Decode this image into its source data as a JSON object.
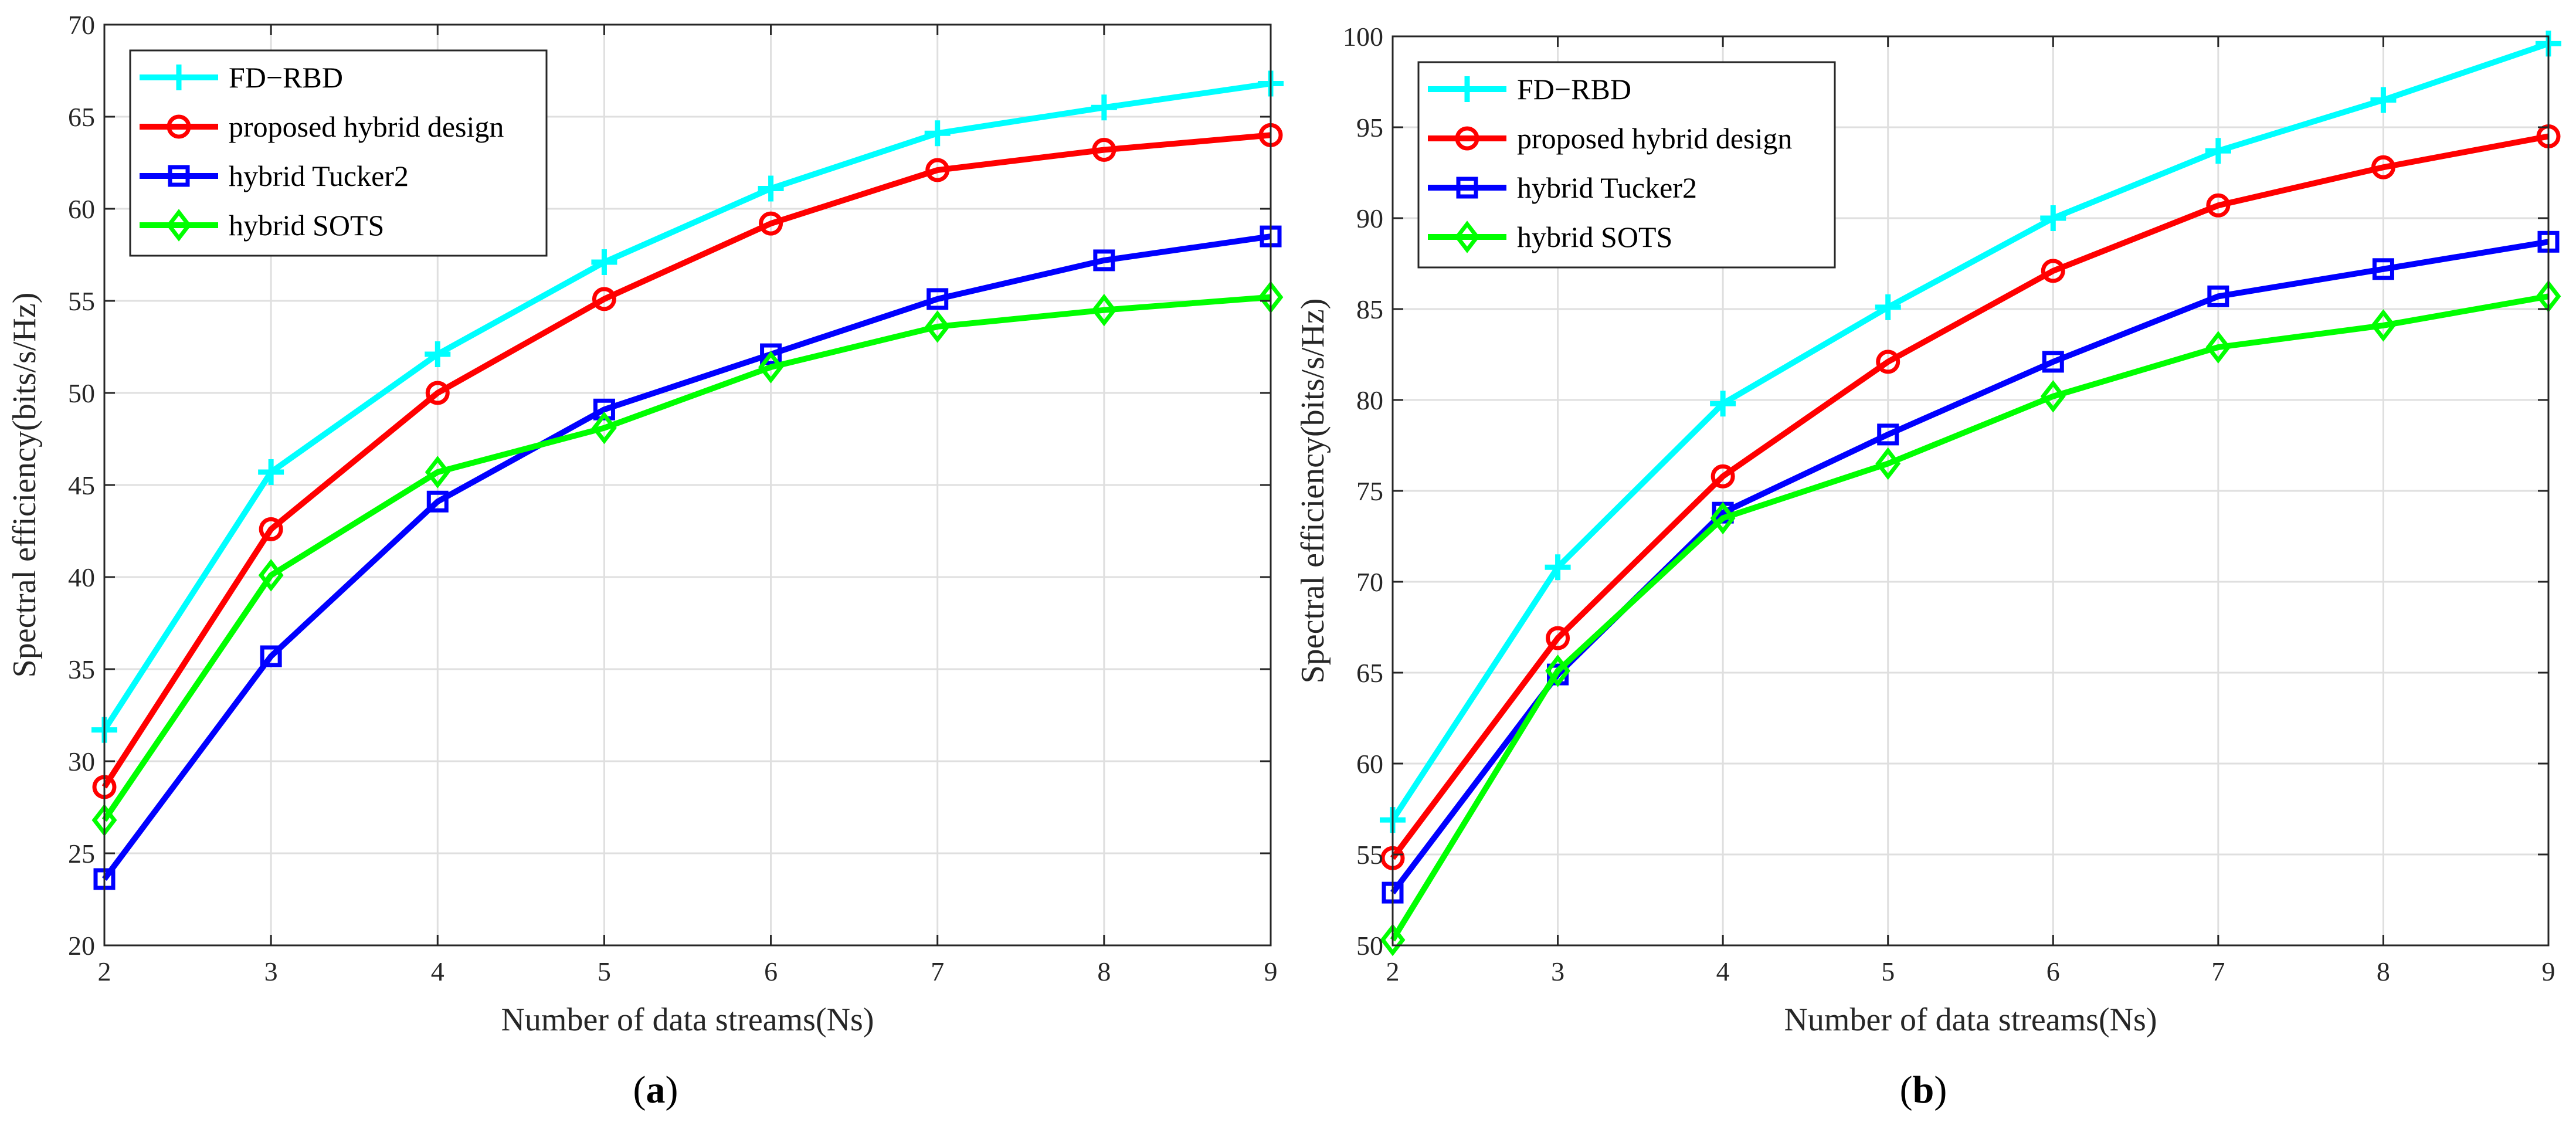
{
  "chart_data": [
    {
      "type": "line",
      "panel": "a",
      "caption_letter": "a",
      "xlabel": "Number of data streams(Ns)",
      "ylabel": "Spectral efficiency(bits/s/Hz)",
      "xlim": [
        2,
        9
      ],
      "ylim": [
        20,
        70
      ],
      "xticks": [
        2,
        3,
        4,
        5,
        6,
        7,
        8,
        9
      ],
      "yticks": [
        20,
        25,
        30,
        35,
        40,
        45,
        50,
        55,
        60,
        65,
        70
      ],
      "grid": true,
      "legend_position": "top-left",
      "x": [
        2,
        3,
        4,
        5,
        6,
        7,
        8,
        9
      ],
      "series": [
        {
          "name": "FD−RBD",
          "color": "#00ffff",
          "marker": "plus",
          "values": [
            31.7,
            45.7,
            52.1,
            57.1,
            61.1,
            64.1,
            65.5,
            66.8
          ]
        },
        {
          "name": "proposed hybrid design",
          "color": "#ff0000",
          "marker": "circle",
          "values": [
            28.6,
            42.6,
            50.0,
            55.1,
            59.2,
            62.1,
            63.2,
            64.0
          ]
        },
        {
          "name": "hybrid Tucker2",
          "color": "#0000ff",
          "marker": "square",
          "values": [
            23.6,
            35.7,
            44.1,
            49.1,
            52.1,
            55.1,
            57.2,
            58.5
          ]
        },
        {
          "name": "hybrid SOTS",
          "color": "#00ff00",
          "marker": "diamond",
          "values": [
            26.8,
            40.1,
            45.7,
            48.1,
            51.4,
            53.6,
            54.5,
            55.2
          ]
        }
      ]
    },
    {
      "type": "line",
      "panel": "b",
      "caption_letter": "b",
      "xlabel": "Number of data streams(Ns)",
      "ylabel": "Spectral efficiency(bits/s/Hz)",
      "xlim": [
        2,
        9
      ],
      "ylim": [
        50,
        100
      ],
      "xticks": [
        2,
        3,
        4,
        5,
        6,
        7,
        8,
        9
      ],
      "yticks": [
        50,
        55,
        60,
        65,
        70,
        75,
        80,
        85,
        90,
        95,
        100
      ],
      "grid": true,
      "legend_position": "top-left",
      "x": [
        2,
        3,
        4,
        5,
        6,
        7,
        8,
        9
      ],
      "series": [
        {
          "name": "FD−RBD",
          "color": "#00ffff",
          "marker": "plus",
          "values": [
            56.9,
            70.8,
            79.8,
            85.1,
            90.0,
            93.7,
            96.5,
            99.6
          ]
        },
        {
          "name": "proposed hybrid design",
          "color": "#ff0000",
          "marker": "circle",
          "values": [
            54.8,
            66.9,
            75.8,
            82.1,
            87.1,
            90.7,
            92.8,
            94.5
          ]
        },
        {
          "name": "hybrid Tucker2",
          "color": "#0000ff",
          "marker": "square",
          "values": [
            52.9,
            64.9,
            73.8,
            78.1,
            82.1,
            85.7,
            87.2,
            88.7
          ]
        },
        {
          "name": "hybrid SOTS",
          "color": "#00ff00",
          "marker": "diamond",
          "values": [
            50.3,
            65.1,
            73.5,
            76.5,
            80.2,
            82.9,
            84.1,
            85.7
          ]
        }
      ]
    }
  ]
}
